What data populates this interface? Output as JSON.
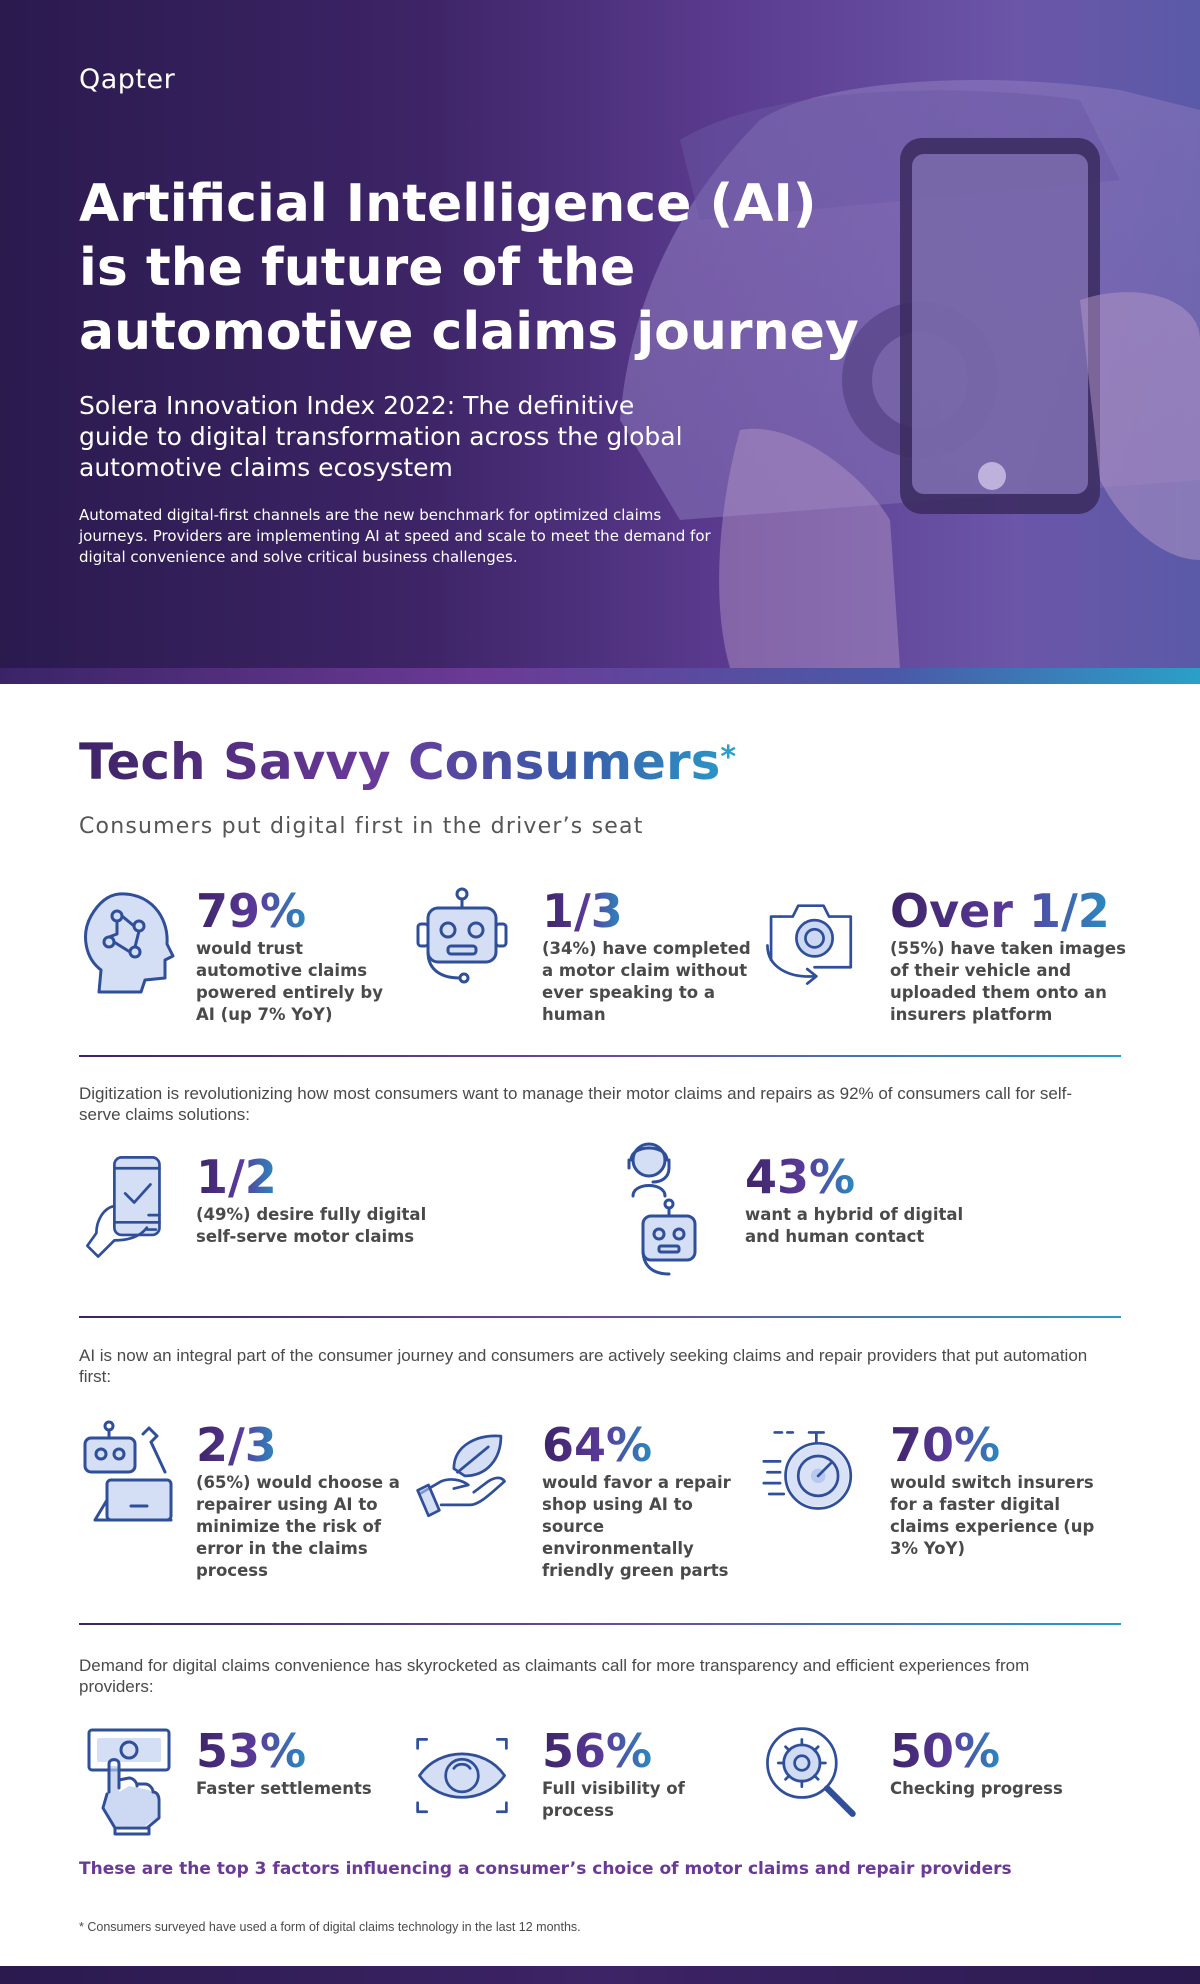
{
  "hero": {
    "brand": "Qapter",
    "title": "Artificial Intelligence (AI) is the future of the automotive claims journey",
    "subtitle": "Solera Innovation Index 2022: The definitive guide to digital transformation across the global automotive claims ecosystem",
    "body": "Automated digital-first channels are the new benchmark for optimized claims journeys. Providers are implementing AI at speed and scale to meet the demand for digital convenience and solve critical business challenges."
  },
  "section": {
    "title": "Tech Savvy Consumers",
    "title_mark": "*",
    "subtitle": "Consumers put digital first in the driver’s seat"
  },
  "group1": {
    "stats": [
      {
        "icon": "ai-head-icon",
        "value": "79%",
        "text": "would trust automotive claims powered entirely by AI (up 7% YoY)"
      },
      {
        "icon": "robot-icon",
        "value": "1/3",
        "text": "(34%) have completed a motor claim without ever speaking to a human"
      },
      {
        "icon": "camera-rotate-icon",
        "value": "Over 1/2",
        "text": "(55%) have taken images of their vehicle and uploaded them onto an insurers platform"
      }
    ]
  },
  "group2": {
    "intro": "Digitization is revolutionizing how most consumers want to manage their motor claims and repairs as 92% of consumers call for self-serve claims solutions:",
    "stats": [
      {
        "icon": "phone-check-icon",
        "value": "1/2",
        "text": "(49%) desire fully digital self-serve motor claims"
      },
      {
        "icon": "agent-robot-icon",
        "value": "43%",
        "text": "want a hybrid of digital and human contact"
      }
    ]
  },
  "group3": {
    "intro": "AI is now an integral part of the consumer journey and consumers are actively seeking claims and repair providers that put automation first:",
    "stats": [
      {
        "icon": "robot-wrench-laptop-icon",
        "value": "2/3",
        "text": "(65%) would choose a repairer using AI to minimize the risk of error in the claims process"
      },
      {
        "icon": "hand-leaf-icon",
        "value": "64%",
        "text": "would favor a repair shop using AI to source environmentally friendly green parts"
      },
      {
        "icon": "stopwatch-icon",
        "value": "70%",
        "text": "would switch insurers for a faster digital claims experience (up 3% YoY)"
      }
    ]
  },
  "group4": {
    "intro": "Demand for digital claims convenience has skyrocketed as claimants call for more transparency and efficient experiences from providers:",
    "stats": [
      {
        "icon": "hand-cash-icon",
        "value": "53%",
        "text": "Faster settlements"
      },
      {
        "icon": "eye-icon",
        "value": "56%",
        "text": "Full visibility of process"
      },
      {
        "icon": "gear-magnifier-icon",
        "value": "50%",
        "text": "Checking progress"
      }
    ],
    "closing": "These are the top 3 factors influencing a consumer’s choice of motor claims and repair providers"
  },
  "footnote": "* Consumers surveyed have used a form of digital claims technology in the last 12 months.",
  "colors": {
    "hero_dark": "#2a1a4e",
    "accent_purple": "#6a3a96",
    "accent_teal": "#2aa0c8",
    "icon_blue": "#2f4f9a"
  }
}
